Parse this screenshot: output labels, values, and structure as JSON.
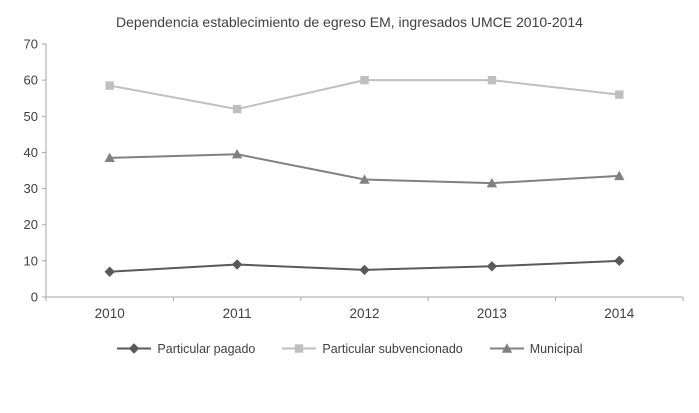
{
  "chart_data": {
    "type": "line",
    "title": "Dependencia establecimiento de egreso EM, ingresados UMCE 2010-2014",
    "categories": [
      "2010",
      "2011",
      "2012",
      "2013",
      "2014"
    ],
    "series": [
      {
        "name": "Particular pagado",
        "values": [
          7,
          9,
          7.5,
          8.5,
          10
        ],
        "color": "#595959",
        "marker": "diamond"
      },
      {
        "name": "Particular subvencionado",
        "values": [
          58.5,
          52,
          60,
          60,
          56
        ],
        "color": "#bfbfbf",
        "marker": "square"
      },
      {
        "name": "Municipal",
        "values": [
          38.5,
          39.5,
          32.5,
          31.5,
          33.5
        ],
        "color": "#808080",
        "marker": "triangle"
      }
    ],
    "ylim": [
      0,
      70
    ],
    "yticks": [
      0,
      10,
      20,
      30,
      40,
      50,
      60,
      70
    ],
    "grid": false,
    "legend_position": "bottom",
    "axis_color": "#a6a6a6",
    "text_color": "#404040"
  }
}
